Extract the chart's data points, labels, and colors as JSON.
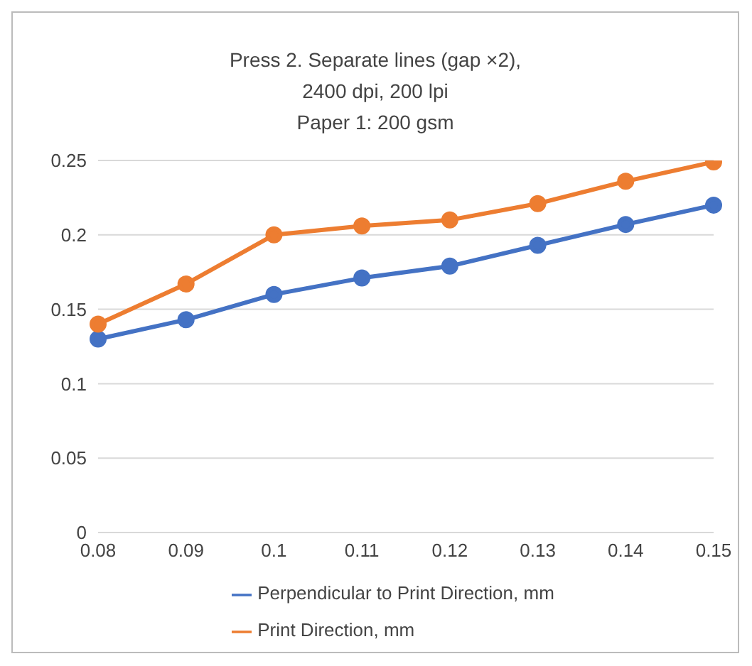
{
  "chart_data": {
    "type": "line",
    "title": "Press 2. Separate lines (gap ×2),\n2400 dpi, 200 lpi\nPaper 1: 200 gsm",
    "categories": [
      "0.08",
      "0.09",
      "0.1",
      "0.11",
      "0.12",
      "0.13",
      "0.14",
      "0.15"
    ],
    "series": [
      {
        "name": "Perpendicular to Print Direction, mm",
        "color": "#4472c4",
        "values": [
          0.13,
          0.143,
          0.16,
          0.171,
          0.179,
          0.193,
          0.207,
          0.22
        ]
      },
      {
        "name": "Print Direction, mm",
        "color": "#ed7d31",
        "values": [
          0.14,
          0.167,
          0.2,
          0.206,
          0.21,
          0.221,
          0.236,
          0.249
        ]
      }
    ],
    "ylim": [
      0,
      0.25
    ],
    "yticks": [
      0,
      0.05,
      0.1,
      0.15,
      0.2,
      0.25
    ],
    "grid": "y",
    "legend": "bottom",
    "marker": "circle",
    "line_style": "solid"
  }
}
